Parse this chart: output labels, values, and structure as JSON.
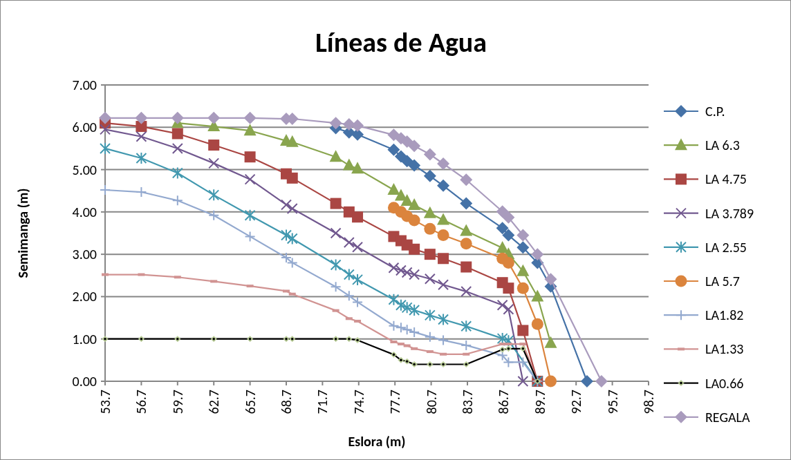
{
  "chart_data": {
    "type": "line",
    "title": "Líneas de Agua",
    "xlabel": "Eslora (m)",
    "ylabel": "Semimanga (m)",
    "xlim": [
      53.7,
      98.7
    ],
    "xticks": [
      53.7,
      56.7,
      59.7,
      62.7,
      65.7,
      68.7,
      71.7,
      74.7,
      77.7,
      80.7,
      83.7,
      86.7,
      89.7,
      92.7,
      95.7,
      98.7
    ],
    "ylim": [
      0,
      7
    ],
    "yticks": [
      {
        "value": 0,
        "label": "0.00"
      },
      {
        "value": 1,
        "label": "1.00"
      },
      {
        "value": 2,
        "label": "2.00"
      },
      {
        "value": 3,
        "label": "3.00"
      },
      {
        "value": 4,
        "label": "4.00"
      },
      {
        "value": 5,
        "label": "5.00"
      },
      {
        "value": 6,
        "label": "6.00"
      },
      {
        "value": 7,
        "label": "7.00"
      }
    ],
    "grid": "y",
    "legend": "right",
    "line_style": "solid",
    "series": [
      {
        "name": "C.P.",
        "color": "#4572a7",
        "marker": "diamond",
        "x": [
          72.8,
          73.9,
          74.6,
          77.6,
          78.2,
          78.7,
          79.3,
          80.6,
          81.7,
          83.6,
          86.6,
          87.1,
          88.3,
          89.5,
          90.6,
          93.6
        ],
        "values": [
          5.98,
          5.88,
          5.83,
          5.47,
          5.31,
          5.2,
          5.1,
          4.85,
          4.62,
          4.2,
          3.62,
          3.45,
          3.16,
          2.8,
          2.24,
          0
        ]
      },
      {
        "name": "LA 6.3",
        "color": "#89a54e",
        "marker": "triangle",
        "x": [
          59.7,
          62.7,
          65.7,
          68.7,
          69.2,
          72.8,
          73.9,
          74.6,
          77.6,
          78.2,
          78.7,
          79.3,
          80.6,
          81.7,
          83.6,
          86.6,
          87.1,
          88.3,
          89.5,
          90.6
        ],
        "values": [
          6.1,
          6.02,
          5.92,
          5.68,
          5.65,
          5.3,
          5.1,
          5.02,
          4.52,
          4.38,
          4.26,
          4.16,
          3.97,
          3.81,
          3.55,
          3.15,
          3,
          2.6,
          2,
          0.9
        ]
      },
      {
        "name": "LA 4.75",
        "color": "#aa4643",
        "marker": "square",
        "x": [
          53.7,
          56.7,
          59.7,
          62.7,
          65.7,
          68.7,
          69.2,
          72.8,
          73.9,
          74.6,
          77.6,
          78.2,
          78.7,
          79.3,
          80.6,
          81.7,
          83.6,
          86.6,
          87.1,
          88.3,
          89.5
        ],
        "values": [
          6.1,
          6.02,
          5.85,
          5.58,
          5.3,
          4.9,
          4.8,
          4.2,
          4,
          3.88,
          3.42,
          3.32,
          3.22,
          3.12,
          3,
          2.9,
          2.7,
          2.33,
          2.2,
          1.2,
          0
        ]
      },
      {
        "name": "LA 3.789",
        "color": "#71588f",
        "marker": "x",
        "x": [
          53.7,
          56.7,
          59.7,
          62.7,
          65.7,
          68.7,
          69.2,
          72.8,
          73.9,
          74.6,
          77.6,
          78.2,
          78.7,
          79.3,
          80.6,
          81.7,
          83.6,
          86.6,
          87.1,
          88.3
        ],
        "values": [
          5.95,
          5.78,
          5.5,
          5.15,
          4.77,
          4.17,
          4.08,
          3.5,
          3.28,
          3.17,
          2.68,
          2.62,
          2.57,
          2.52,
          2.42,
          2.28,
          2.12,
          1.8,
          1.7,
          0
        ]
      },
      {
        "name": "LA 2.55",
        "color": "#4198af",
        "marker": "cross",
        "x": [
          53.7,
          56.7,
          59.7,
          62.7,
          65.7,
          68.7,
          69.2,
          72.8,
          73.9,
          74.6,
          77.6,
          78.2,
          78.7,
          79.3,
          80.6,
          81.7,
          83.6,
          86.6,
          87.1,
          89.5
        ],
        "values": [
          5.5,
          5.27,
          4.92,
          4.4,
          3.92,
          3.45,
          3.37,
          2.75,
          2.52,
          2.4,
          1.93,
          1.8,
          1.74,
          1.68,
          1.56,
          1.46,
          1.3,
          1.01,
          0.96,
          0
        ]
      },
      {
        "name": "LA 5.7",
        "color": "#db843d",
        "marker": "circle",
        "x": [
          77.6,
          78.2,
          78.7,
          79.3,
          80.6,
          81.7,
          83.6,
          86.6,
          87.1,
          88.3,
          89.5,
          90.6
        ],
        "values": [
          4.1,
          4,
          3.9,
          3.8,
          3.6,
          3.45,
          3.25,
          2.9,
          2.8,
          2.2,
          1.35,
          0
        ]
      },
      {
        "name": "LA1.82",
        "color": "#93a9cf",
        "marker": "plus",
        "x": [
          53.7,
          56.7,
          59.7,
          62.7,
          65.7,
          68.7,
          69.2,
          72.8,
          73.9,
          74.6,
          77.6,
          78.2,
          78.7,
          79.3,
          80.6,
          81.7,
          83.6,
          86.6,
          87.1,
          88.3,
          89.5
        ],
        "values": [
          4.52,
          4.47,
          4.27,
          3.92,
          3.42,
          2.92,
          2.8,
          2.23,
          2.02,
          1.87,
          1.31,
          1.27,
          1.22,
          1.16,
          1.05,
          0.97,
          0.85,
          0.61,
          0.45,
          0.45,
          0
        ]
      },
      {
        "name": "LA1.33",
        "color": "#d19392",
        "marker": "square",
        "x": [
          53.7,
          56.7,
          59.7,
          62.7,
          65.7,
          68.7,
          69.2,
          72.8,
          73.9,
          74.6,
          77.6,
          78.2,
          78.7,
          79.3,
          80.6,
          81.7,
          83.6,
          86.6,
          87.1,
          88.3,
          89.5
        ],
        "values": [
          2.52,
          2.52,
          2.46,
          2.36,
          2.25,
          2.13,
          2.06,
          1.67,
          1.48,
          1.42,
          0.93,
          0.88,
          0.84,
          0.77,
          0.7,
          0.64,
          0.64,
          0.88,
          0.88,
          0.88,
          0
        ]
      },
      {
        "name": "LA0.66",
        "color": "#000000",
        "marker": "diamond",
        "x": [
          53.7,
          56.7,
          59.7,
          62.7,
          65.7,
          68.7,
          69.2,
          72.8,
          73.9,
          74.6,
          77.6,
          78.2,
          78.7,
          79.3,
          80.6,
          81.7,
          83.6,
          86.6,
          87.1,
          88.3,
          89.5
        ],
        "values": [
          1,
          1,
          1,
          1,
          1,
          1,
          1,
          1,
          1,
          0.97,
          0.63,
          0.5,
          0.47,
          0.4,
          0.4,
          0.4,
          0.4,
          0.75,
          0.77,
          0.77,
          0
        ]
      },
      {
        "name": "REGALA",
        "color": "#a99bbd",
        "marker": "diamond",
        "x": [
          53.7,
          56.7,
          59.7,
          62.7,
          65.7,
          68.7,
          69.2,
          72.8,
          73.9,
          74.6,
          77.6,
          78.2,
          78.7,
          79.3,
          80.6,
          81.7,
          83.6,
          86.6,
          87.1,
          88.3,
          89.5,
          90.6,
          94.8
        ],
        "values": [
          6.22,
          6.22,
          6.22,
          6.22,
          6.22,
          6.2,
          6.2,
          6.1,
          6.07,
          6.04,
          5.82,
          5.74,
          5.66,
          5.56,
          5.36,
          5.14,
          4.76,
          4.01,
          3.87,
          3.45,
          3,
          2.41,
          0
        ]
      }
    ]
  }
}
